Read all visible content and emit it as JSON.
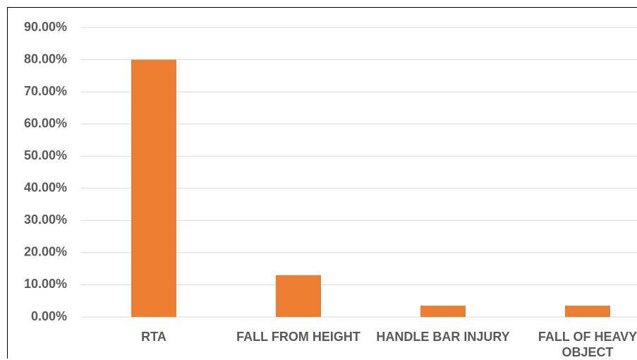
{
  "chart_data": {
    "type": "bar",
    "categories": [
      "RTA",
      "FALL FROM HEIGHT",
      "HANDLE BAR INJURY",
      "FALL OF HEAVY OBJECT"
    ],
    "values": [
      80,
      13,
      3.5,
      3.5
    ],
    "color": "#ed7d31",
    "ylim": [
      0,
      90
    ],
    "yticks": [
      {
        "value": 0,
        "label": "0.00%"
      },
      {
        "value": 10,
        "label": "10.00%"
      },
      {
        "value": 20,
        "label": "20.00%"
      },
      {
        "value": 30,
        "label": "30.00%"
      },
      {
        "value": 40,
        "label": "40.00%"
      },
      {
        "value": 50,
        "label": "50.00%"
      },
      {
        "value": 60,
        "label": "60.00%"
      },
      {
        "value": 70,
        "label": "70.00%"
      },
      {
        "value": 80,
        "label": "80.00%"
      },
      {
        "value": 90,
        "label": "90.00%"
      }
    ],
    "grid": true
  }
}
